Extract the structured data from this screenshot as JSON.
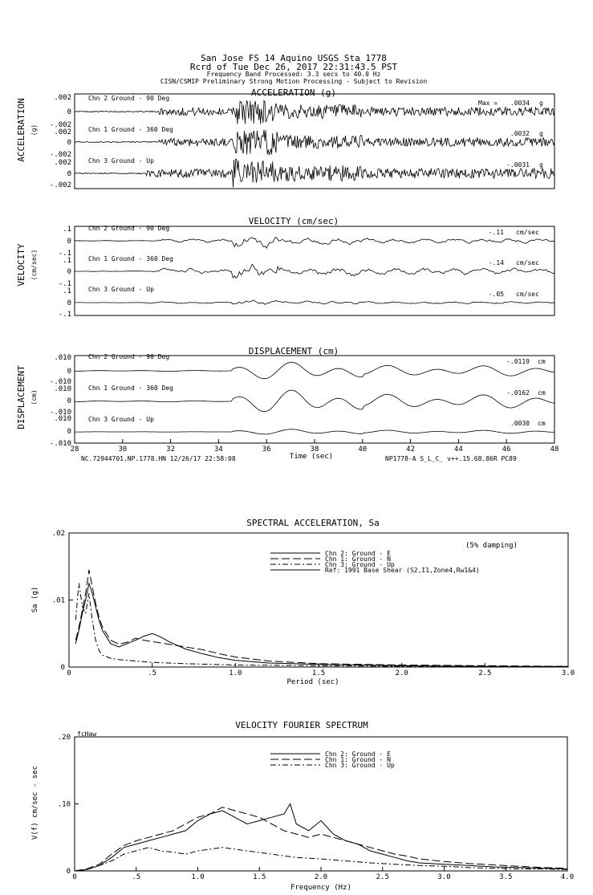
{
  "header": {
    "line1": "San Jose FS 14 Aquino     USGS Sta 1778",
    "line2": "Rcrd of Tue Dec 26, 2017 22:31:43.5 PST",
    "line3": "Frequency Band Processed: 3.3 secs to 40.0 Hz",
    "line4": "CISN/CSMIP Preliminary Strong Motion Processing - Subject to Revision"
  },
  "waveforms": {
    "time_axis": {
      "label": "Time (sec)",
      "range": [
        28,
        48
      ],
      "ticks": [
        "28",
        "30",
        "32",
        "34",
        "36",
        "38",
        "40",
        "42",
        "44",
        "46",
        "48"
      ]
    },
    "footer_left": "NC.72944701.NP.1778.HN 12/26/17 22:58:08",
    "footer_right": "NP1778-A  S_L_C_  v++.15.68.86R PC89",
    "acceleration": {
      "title": "ACCELERATION (g)",
      "side_label": "ACCELERATION",
      "side_unit": "(g)",
      "ytick_top": ".002",
      "ytick_mid": "0",
      "ytick_bot": "-.002",
      "channels": [
        {
          "name": "Chn 2  Ground - 90 Deg",
          "peak_prefix": "Max =",
          "peak": ".0034",
          "unit": "g"
        },
        {
          "name": "Chn 1  Ground - 360 Deg",
          "peak_prefix": "",
          "peak": ".0032",
          "unit": "g"
        },
        {
          "name": "Chn 3  Ground - Up",
          "peak_prefix": "",
          "peak": "-.0031",
          "unit": "g"
        }
      ]
    },
    "velocity": {
      "title": "VELOCITY (cm/sec)",
      "side_label": "VELOCITY",
      "side_unit": "(cm/sec)",
      "ytick_top": ".1",
      "ytick_mid": "0",
      "ytick_bot": "-.1",
      "channels": [
        {
          "name": "Chn 2  Ground - 90 Deg",
          "peak": "-.11",
          "unit": "cm/sec"
        },
        {
          "name": "Chn 1  Ground - 360 Deg",
          "peak": "-.14",
          "unit": "cm/sec"
        },
        {
          "name": "Chn 3  Ground - Up",
          "peak": "-.05",
          "unit": "cm/sec"
        }
      ]
    },
    "displacement": {
      "title": "DISPLACEMENT (cm)",
      "side_label": "DISPLACEMENT",
      "side_unit": "(cm)",
      "ytick_top": ".010",
      "ytick_mid": "0",
      "ytick_bot": "-.010",
      "channels": [
        {
          "name": "Chn 2  Ground - 90 Deg",
          "peak": "-.0119",
          "unit": "cm"
        },
        {
          "name": "Chn 1  Ground - 360 Deg",
          "peak": "-.0162",
          "unit": "cm"
        },
        {
          "name": "Chn 3  Ground - Up",
          "peak": ".0030",
          "unit": "cm"
        }
      ]
    }
  },
  "chart_data": [
    {
      "type": "line",
      "title": "SPECTRAL ACCELERATION, Sa",
      "annotation": "(5% damping)",
      "xlabel": "Period (sec)",
      "ylabel": "Sa (g)",
      "xlim": [
        0,
        3.0
      ],
      "ylim": [
        0,
        0.02
      ],
      "xticks": [
        "0",
        ".5",
        "1.0",
        "1.5",
        "2.0",
        "2.5",
        "3.0"
      ],
      "yticks": [
        "0",
        ".01",
        ".02"
      ],
      "legend_position": "top-right",
      "series": [
        {
          "name": "Chn 2: Ground - E",
          "dash": "solid",
          "x": [
            0.04,
            0.06,
            0.08,
            0.1,
            0.12,
            0.14,
            0.16,
            0.18,
            0.2,
            0.25,
            0.3,
            0.35,
            0.4,
            0.45,
            0.5,
            0.55,
            0.6,
            0.7,
            0.8,
            0.9,
            1.0,
            1.2,
            1.5,
            2.0,
            2.5,
            3.0
          ],
          "y": [
            0.0035,
            0.0055,
            0.008,
            0.01,
            0.0125,
            0.011,
            0.009,
            0.007,
            0.0055,
            0.0035,
            0.003,
            0.0035,
            0.004,
            0.0046,
            0.005,
            0.0045,
            0.0038,
            0.0027,
            0.002,
            0.0014,
            0.001,
            0.0006,
            0.0004,
            0.0002,
            0.0001,
            0.0001
          ]
        },
        {
          "name": "Chn 1: Ground - N",
          "dash": "long-dash",
          "x": [
            0.04,
            0.06,
            0.08,
            0.1,
            0.12,
            0.14,
            0.16,
            0.18,
            0.2,
            0.25,
            0.3,
            0.35,
            0.4,
            0.45,
            0.5,
            0.55,
            0.6,
            0.7,
            0.8,
            0.9,
            1.0,
            1.2,
            1.5,
            2.0,
            2.5,
            3.0
          ],
          "y": [
            0.004,
            0.006,
            0.0085,
            0.011,
            0.0145,
            0.012,
            0.0095,
            0.0075,
            0.006,
            0.004,
            0.0034,
            0.0037,
            0.0043,
            0.004,
            0.0038,
            0.0036,
            0.0034,
            0.003,
            0.0026,
            0.002,
            0.0015,
            0.0009,
            0.0005,
            0.0003,
            0.0002,
            0.0001
          ]
        },
        {
          "name": "Chn 3: Ground - Up",
          "dash": "dash-dot",
          "x": [
            0.04,
            0.05,
            0.06,
            0.08,
            0.1,
            0.12,
            0.14,
            0.16,
            0.18,
            0.2,
            0.25,
            0.3,
            0.4,
            0.5,
            0.7,
            1.0,
            1.5,
            2.0,
            2.5,
            3.0
          ],
          "y": [
            0.007,
            0.01,
            0.0125,
            0.009,
            0.008,
            0.011,
            0.007,
            0.004,
            0.0025,
            0.0018,
            0.0013,
            0.0011,
            0.0009,
            0.0007,
            0.0005,
            0.0003,
            0.0002,
            0.0001,
            0.0001,
            0.0
          ]
        },
        {
          "name": "Ref: 1991 Base Shear (S2,I1,Zone4,Rw1&4)",
          "dash": "solid",
          "x": [],
          "y": []
        }
      ]
    },
    {
      "type": "line",
      "title": "VELOCITY FOURIER SPECTRUM",
      "annotation": "fcHaw",
      "xlabel": "Frequency (Hz)",
      "ylabel": "V(f)   cm/sec - sec",
      "xlim": [
        0,
        4.0
      ],
      "ylim": [
        0,
        0.2
      ],
      "xticks": [
        "0",
        ".5",
        "1.0",
        "1.5",
        "2.0",
        "2.5",
        "3.0",
        "3.5",
        "4.0"
      ],
      "yticks": [
        "0",
        ".10",
        ".20"
      ],
      "legend_position": "top-right",
      "series": [
        {
          "name": "Chn 2: Ground - E",
          "dash": "solid",
          "x": [
            0.0,
            0.1,
            0.2,
            0.3,
            0.4,
            0.5,
            0.6,
            0.7,
            0.8,
            0.9,
            1.0,
            1.1,
            1.2,
            1.3,
            1.4,
            1.5,
            1.6,
            1.7,
            1.75,
            1.8,
            1.9,
            2.0,
            2.1,
            2.2,
            2.3,
            2.4,
            2.5,
            2.6,
            2.7,
            2.8,
            3.0,
            3.2,
            3.4,
            3.6,
            3.8,
            4.0
          ],
          "y": [
            0.0,
            0.002,
            0.008,
            0.02,
            0.035,
            0.04,
            0.045,
            0.05,
            0.055,
            0.06,
            0.075,
            0.085,
            0.09,
            0.08,
            0.07,
            0.075,
            0.08,
            0.085,
            0.1,
            0.07,
            0.06,
            0.075,
            0.055,
            0.045,
            0.04,
            0.03,
            0.025,
            0.02,
            0.015,
            0.012,
            0.01,
            0.008,
            0.006,
            0.005,
            0.004,
            0.003
          ]
        },
        {
          "name": "Chn 1: Ground - N",
          "dash": "long-dash",
          "x": [
            0.0,
            0.1,
            0.2,
            0.3,
            0.4,
            0.5,
            0.6,
            0.7,
            0.8,
            0.9,
            1.0,
            1.1,
            1.2,
            1.3,
            1.4,
            1.5,
            1.6,
            1.7,
            1.8,
            1.9,
            2.0,
            2.1,
            2.2,
            2.3,
            2.4,
            2.5,
            2.6,
            2.7,
            2.8,
            3.0,
            3.2,
            3.4,
            3.6,
            3.8,
            4.0
          ],
          "y": [
            0.0,
            0.003,
            0.01,
            0.025,
            0.038,
            0.045,
            0.05,
            0.055,
            0.06,
            0.07,
            0.08,
            0.085,
            0.095,
            0.09,
            0.085,
            0.08,
            0.07,
            0.06,
            0.055,
            0.05,
            0.055,
            0.05,
            0.045,
            0.04,
            0.035,
            0.03,
            0.025,
            0.022,
            0.018,
            0.014,
            0.011,
            0.009,
            0.007,
            0.005,
            0.004
          ]
        },
        {
          "name": "Chn 3: Ground - Up",
          "dash": "dash-dot",
          "x": [
            0.0,
            0.1,
            0.2,
            0.3,
            0.4,
            0.5,
            0.6,
            0.7,
            0.8,
            0.9,
            1.0,
            1.2,
            1.4,
            1.6,
            1.8,
            2.0,
            2.2,
            2.4,
            2.6,
            2.8,
            3.0,
            3.2,
            3.4,
            3.6,
            3.8,
            4.0
          ],
          "y": [
            0.0,
            0.002,
            0.008,
            0.015,
            0.025,
            0.03,
            0.035,
            0.03,
            0.028,
            0.025,
            0.03,
            0.035,
            0.03,
            0.025,
            0.02,
            0.018,
            0.015,
            0.012,
            0.01,
            0.008,
            0.007,
            0.005,
            0.004,
            0.003,
            0.003,
            0.002
          ]
        }
      ]
    }
  ]
}
